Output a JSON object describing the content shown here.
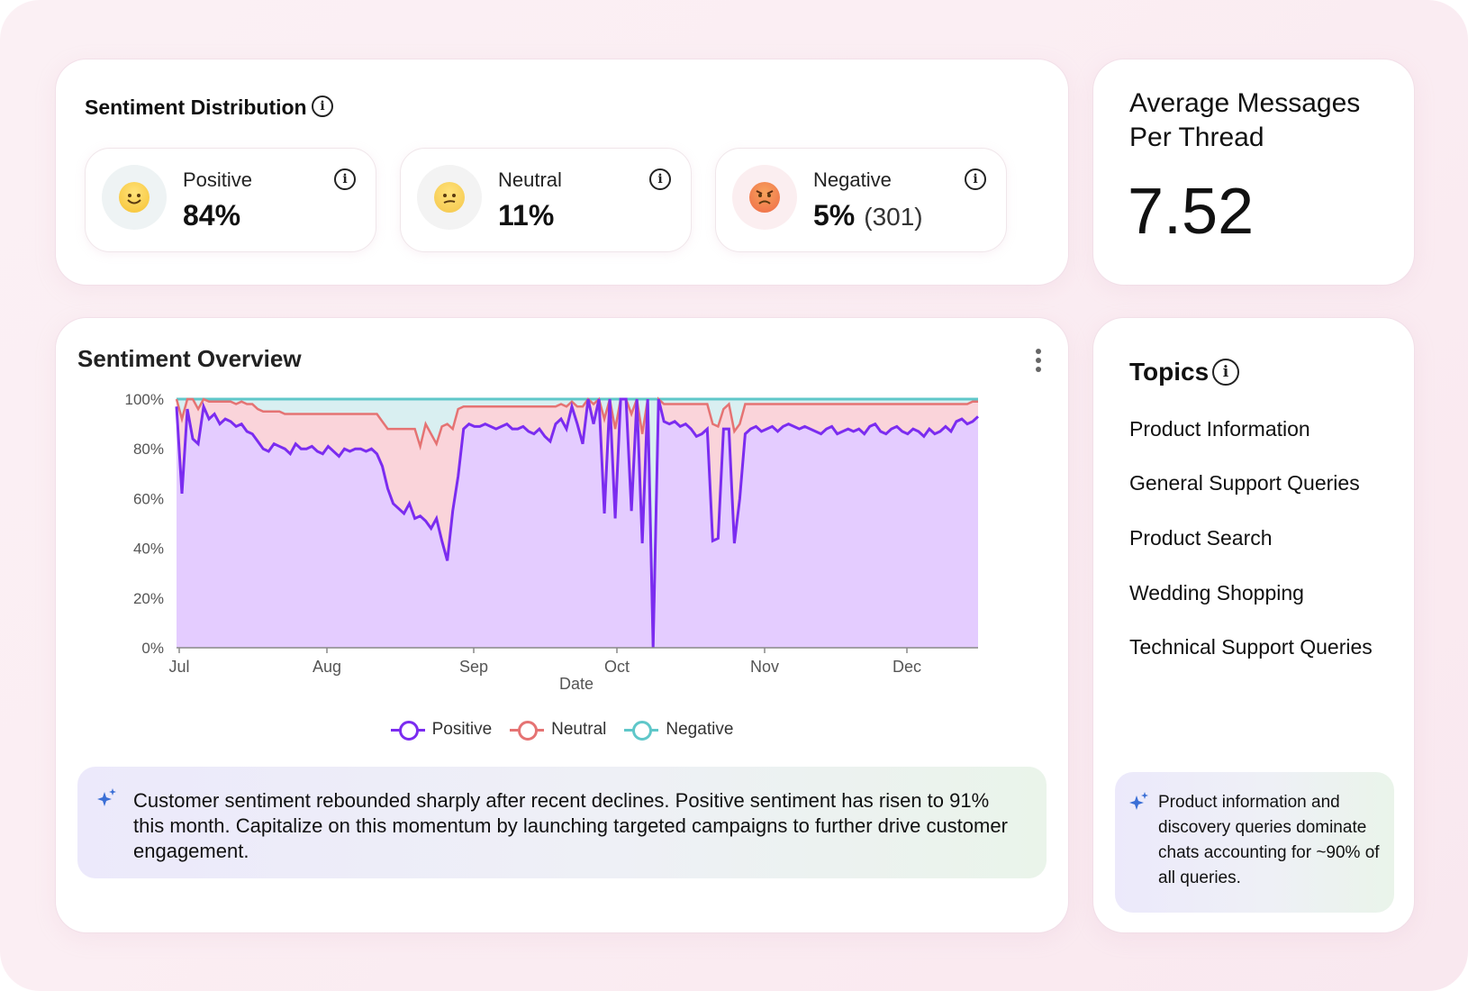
{
  "distribution": {
    "title": "Sentiment Distribution",
    "stats": [
      {
        "label": "Positive",
        "value": "84%",
        "count": "",
        "emoji": "smiling-face-icon",
        "color": "#f6c232"
      },
      {
        "label": "Neutral",
        "value": "11%",
        "count": "",
        "emoji": "confused-face-icon",
        "color": "#f4c64a"
      },
      {
        "label": "Negative",
        "value": "5%",
        "count": "(301)",
        "emoji": "angry-face-icon",
        "color": "#ef6a48"
      }
    ]
  },
  "average": {
    "title": "Average Messages Per Thread",
    "value": "7.52"
  },
  "overview": {
    "title": "Sentiment Overview",
    "insight": "Customer sentiment rebounded sharply after recent declines. Positive sentiment has risen to 91% this month. Capitalize on this momentum by launching targeted campaigns to further drive customer engagement."
  },
  "topics": {
    "title": "Topics",
    "items": [
      "Product Information",
      "General Support Queries",
      "Product Search",
      "Wedding Shopping",
      "Technical Support Queries"
    ],
    "insight": "Product information and discovery queries dominate chats accounting for ~90% of all queries."
  },
  "chart_data": {
    "type": "area",
    "title": "",
    "xlabel": "Date",
    "ylabel": "",
    "x_ticks": [
      "Jul",
      "Aug",
      "Sep",
      "Oct",
      "Nov",
      "Dec"
    ],
    "y_ticks": [
      "0%",
      "20%",
      "40%",
      "60%",
      "80%",
      "100%"
    ],
    "ylim": [
      0,
      100
    ],
    "stacked": true,
    "legend_position": "bottom",
    "grid": true,
    "x_start": "Jul 1",
    "x_end": "Dec 17",
    "x_step_days": 3,
    "series": [
      {
        "name": "Positive",
        "color": "#7b2cf0",
        "fill": "#e4ccff",
        "values": [
          97,
          62,
          96,
          84,
          82,
          97,
          92,
          94,
          90,
          92,
          91,
          89,
          90,
          87,
          86,
          83,
          80,
          79,
          82,
          81,
          80,
          78,
          82,
          80,
          80,
          81,
          79,
          78,
          81,
          79,
          77,
          80,
          79,
          80,
          80,
          79,
          80,
          78,
          73,
          64,
          58,
          56,
          54,
          58,
          52,
          53,
          51,
          48,
          52,
          43,
          35,
          55,
          69,
          88,
          90,
          89,
          89,
          90,
          89,
          88,
          89,
          90,
          88,
          88,
          89,
          87,
          86,
          88,
          85,
          83,
          90,
          92,
          88,
          97,
          90,
          82,
          100,
          90,
          100,
          54,
          100,
          52,
          100,
          100,
          55,
          100,
          42,
          100,
          0,
          100,
          91,
          90,
          91,
          89,
          90,
          88,
          85,
          86,
          88,
          43,
          44,
          88,
          88,
          42,
          60,
          86,
          88,
          89,
          87,
          88,
          89,
          87,
          89,
          90,
          89,
          88,
          89,
          88,
          87,
          86,
          88,
          89,
          86,
          87,
          88,
          87,
          88,
          86,
          89,
          90,
          87,
          86,
          88,
          89,
          87,
          86,
          88,
          87,
          85,
          88,
          86,
          87,
          89,
          87,
          91,
          92,
          90,
          91,
          93
        ]
      },
      {
        "name": "Neutral",
        "color": "#e57373",
        "fill": "#fad4da",
        "values": [
          3,
          30,
          4,
          16,
          14,
          3,
          7,
          5,
          9,
          7,
          8,
          9,
          9,
          11,
          12,
          13,
          15,
          16,
          13,
          14,
          14,
          16,
          12,
          14,
          14,
          13,
          15,
          16,
          13,
          15,
          17,
          14,
          15,
          14,
          14,
          15,
          14,
          16,
          18,
          24,
          30,
          32,
          34,
          30,
          36,
          28,
          39,
          38,
          30,
          46,
          55,
          33,
          27,
          9,
          7,
          8,
          8,
          7,
          8,
          9,
          8,
          7,
          9,
          9,
          8,
          10,
          11,
          9,
          12,
          14,
          7,
          6,
          9,
          2,
          7,
          15,
          0,
          8,
          0,
          38,
          0,
          36,
          0,
          0,
          39,
          0,
          44,
          0,
          0,
          0,
          7,
          8,
          7,
          9,
          8,
          10,
          13,
          12,
          10,
          47,
          45,
          8,
          10,
          45,
          30,
          12,
          10,
          9,
          11,
          10,
          9,
          11,
          9,
          8,
          9,
          10,
          9,
          10,
          11,
          12,
          10,
          9,
          12,
          11,
          10,
          11,
          10,
          12,
          9,
          8,
          11,
          12,
          10,
          9,
          11,
          12,
          10,
          11,
          13,
          10,
          12,
          11,
          9,
          11,
          7,
          6,
          8,
          8,
          6
        ]
      },
      {
        "name": "Negative",
        "color": "#5fc7c9",
        "fill": "#d9eff1",
        "values": [
          0,
          8,
          0,
          0,
          4,
          0,
          1,
          1,
          1,
          1,
          1,
          2,
          1,
          2,
          2,
          4,
          5,
          5,
          5,
          5,
          6,
          6,
          6,
          6,
          6,
          6,
          6,
          6,
          6,
          6,
          6,
          6,
          6,
          6,
          6,
          6,
          6,
          6,
          9,
          12,
          12,
          12,
          12,
          12,
          12,
          19,
          10,
          14,
          18,
          11,
          10,
          12,
          4,
          3,
          3,
          3,
          3,
          3,
          3,
          3,
          3,
          3,
          3,
          3,
          3,
          3,
          3,
          3,
          3,
          3,
          3,
          2,
          3,
          1,
          3,
          3,
          0,
          2,
          0,
          8,
          0,
          12,
          0,
          0,
          6,
          0,
          14,
          0,
          100,
          0,
          2,
          2,
          2,
          2,
          2,
          2,
          2,
          2,
          2,
          10,
          11,
          4,
          2,
          13,
          10,
          2,
          2,
          2,
          2,
          2,
          2,
          2,
          2,
          2,
          2,
          2,
          2,
          2,
          2,
          2,
          2,
          2,
          2,
          2,
          2,
          2,
          2,
          2,
          2,
          2,
          2,
          2,
          2,
          2,
          2,
          2,
          2,
          2,
          2,
          2,
          2,
          2,
          2,
          2,
          2,
          2,
          2,
          1,
          1
        ]
      }
    ]
  }
}
